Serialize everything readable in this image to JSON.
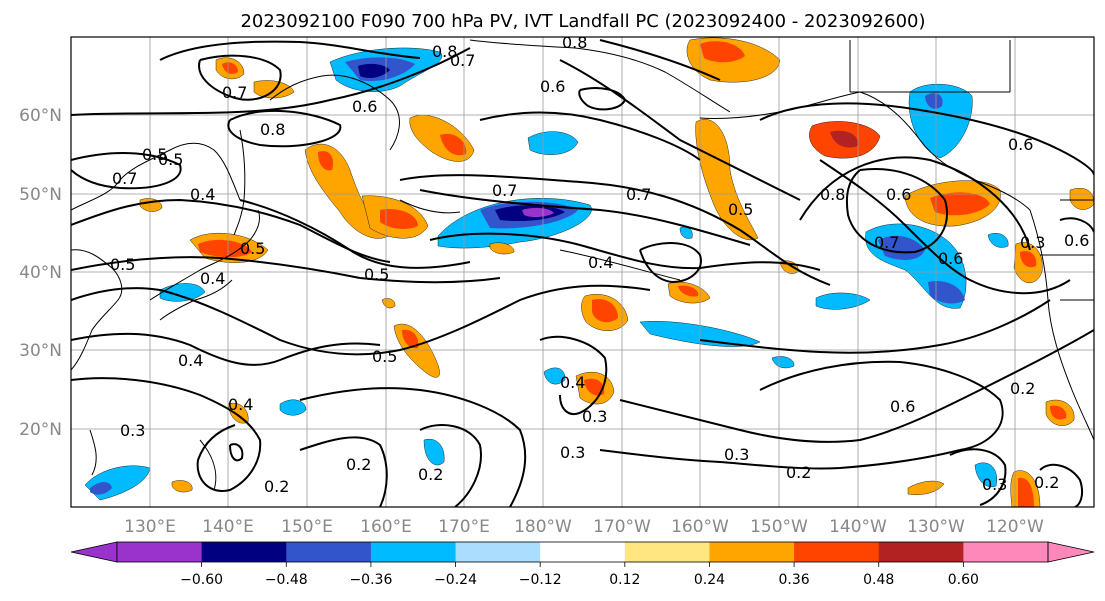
{
  "title": "2023092100 F090 700 hPa PV, IVT Landfall PC (2023092400 - 2023092600)",
  "lat_labels": [
    "60°N",
    "50°N",
    "40°N",
    "30°N",
    "20°N"
  ],
  "lon_labels": [
    "130°E",
    "140°E",
    "150°E",
    "160°E",
    "170°E",
    "180°W",
    "170°W",
    "160°W",
    "150°W",
    "140°W",
    "130°W",
    "120°W"
  ],
  "colorbar": {
    "colors": [
      "#9933cc",
      "#000080",
      "#3355cc",
      "#00bbff",
      "#aaddff",
      "#ffffff",
      "#ffe680",
      "#ffa500",
      "#ff4400",
      "#b22222",
      "#ff88bb"
    ],
    "tick_labels": [
      "−0.60",
      "−0.48",
      "−0.36",
      "−0.24",
      "−0.12",
      "0.12",
      "0.24",
      "0.36",
      "0.48",
      "0.60"
    ],
    "extend": "both"
  },
  "contour_labels": [
    "0.8",
    "0.7",
    "0.8",
    "0.7",
    "0.6",
    "0.8",
    "0.7",
    "0.5",
    "0.5",
    "0.6",
    "0.7",
    "0.5",
    "0.7",
    "0.5",
    "0.4",
    "0.4",
    "0.5",
    "0.4",
    "0.5",
    "0.5",
    "0.6",
    "0.8",
    "0.6",
    "0.3",
    "0.6",
    "0.6",
    "0.4",
    "0.4",
    "0.3",
    "0.4",
    "0.3",
    "0.3",
    "0.3",
    "0.2",
    "0.2",
    "0.2",
    "0.2",
    "0.3",
    "0.2",
    "0.2",
    "0.6",
    "0.7"
  ]
}
